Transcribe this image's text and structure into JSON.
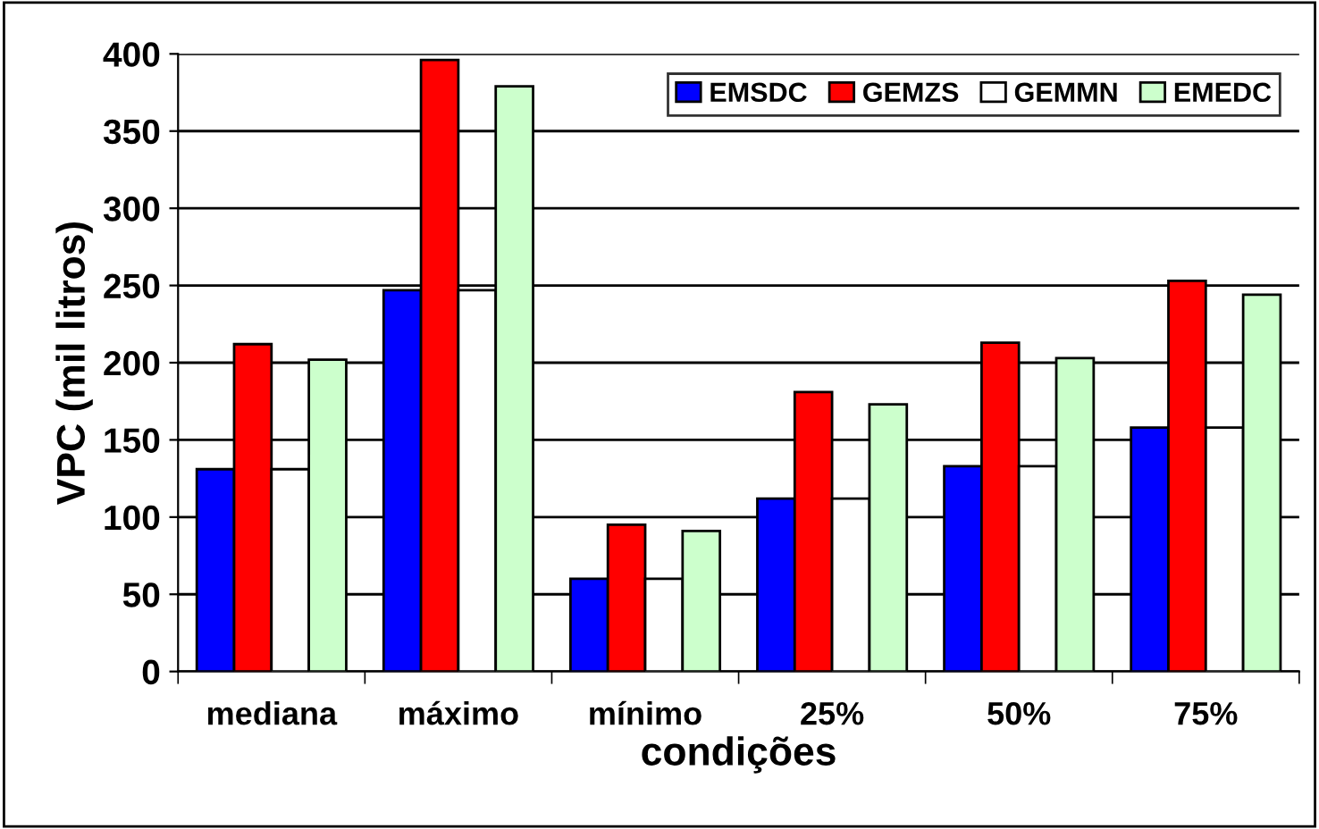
{
  "chart_data": {
    "type": "bar",
    "xlabel": "condições",
    "ylabel": "VPC (mil litros)",
    "categories": [
      "mediana",
      "máximo",
      "mínimo",
      "25%",
      "50%",
      "75%"
    ],
    "series": [
      {
        "name": "EMSDC",
        "color": "#0000ff",
        "values": [
          131,
          247,
          60,
          112,
          133,
          158
        ]
      },
      {
        "name": "GEMZS",
        "color": "#ff0000",
        "values": [
          212,
          396,
          95,
          181,
          213,
          253
        ]
      },
      {
        "name": "GEMMN",
        "color": "#ffffff",
        "values": [
          131,
          247,
          60,
          112,
          133,
          158
        ]
      },
      {
        "name": "EMEDC",
        "color": "#ccffcc",
        "values": [
          202,
          379,
          91,
          173,
          203,
          244
        ]
      }
    ],
    "ylim": [
      0,
      400
    ],
    "yticks": [
      0,
      50,
      100,
      150,
      200,
      250,
      300,
      350,
      400
    ],
    "grid": "y",
    "legend": "top right"
  }
}
